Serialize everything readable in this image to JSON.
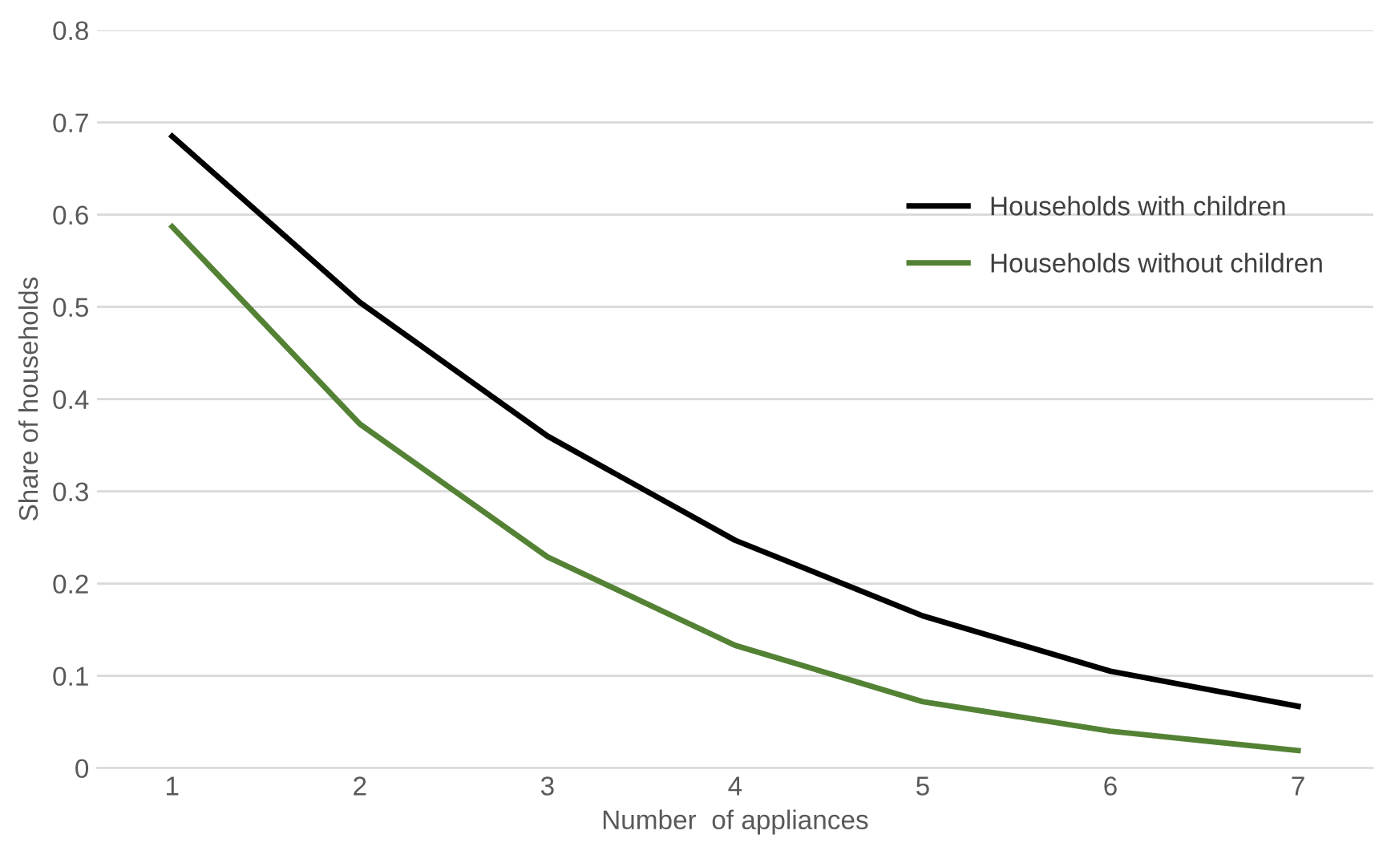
{
  "chart_data": {
    "type": "line",
    "xlabel": "Number  of appliances",
    "ylabel": "Share of households",
    "categories": [
      "1",
      "2",
      "3",
      "4",
      "5",
      "6",
      "7"
    ],
    "series": [
      {
        "name": "Households with children",
        "color": "#000000",
        "values": [
          0.685,
          0.505,
          0.36,
          0.247,
          0.165,
          0.105,
          0.067
        ]
      },
      {
        "name": "Households without children",
        "color": "#548235",
        "values": [
          0.587,
          0.373,
          0.229,
          0.133,
          0.072,
          0.04,
          0.019
        ]
      }
    ],
    "ylim": [
      0,
      0.8
    ],
    "yticks": [
      0,
      0.1,
      0.2,
      0.3,
      0.4,
      0.5,
      0.6,
      0.7,
      0.8
    ],
    "grid": "y",
    "legend": "right",
    "marker": "none",
    "line_style": "solid"
  }
}
